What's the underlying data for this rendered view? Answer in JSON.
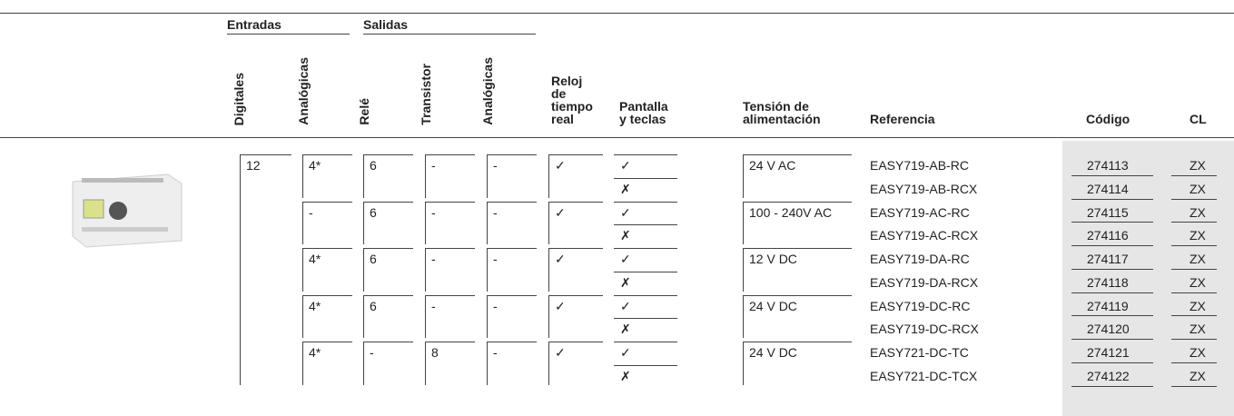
{
  "header": {
    "groups": [
      "Entradas",
      "Salidas"
    ],
    "rotated": [
      "Digitales",
      "Analógicas",
      "Relé",
      "Transistor",
      "Analógicas"
    ],
    "columns": [
      "Reloj\nde\ntiempo\nreal",
      "Pantalla\ny teclas",
      "Tensión de\nalimentación",
      "Referencia",
      "Código",
      "CL"
    ]
  },
  "table": {
    "digitales": "12",
    "groups": [
      {
        "analogicas": "4*",
        "rele": "6",
        "transistor": "-",
        "analogicas_salida": "-",
        "reloj": "✓",
        "tension": "24 V AC",
        "rows": [
          {
            "pantalla": "✓",
            "referencia": "EASY719-AB-RC",
            "codigo": "274113",
            "cl": "ZX"
          },
          {
            "pantalla": "✗",
            "referencia": "EASY719-AB-RCX",
            "codigo": "274114",
            "cl": "ZX"
          }
        ]
      },
      {
        "analogicas": "-",
        "rele": "6",
        "transistor": "-",
        "analogicas_salida": "-",
        "reloj": "✓",
        "tension": "100 - 240V AC",
        "rows": [
          {
            "pantalla": "✓",
            "referencia": "EASY719-AC-RC",
            "codigo": "274115",
            "cl": "ZX"
          },
          {
            "pantalla": "✗",
            "referencia": "EASY719-AC-RCX",
            "codigo": "274116",
            "cl": "ZX"
          }
        ]
      },
      {
        "analogicas": "4*",
        "rele": "6",
        "transistor": "-",
        "analogicas_salida": "-",
        "reloj": "✓",
        "tension": "12 V DC",
        "rows": [
          {
            "pantalla": "✓",
            "referencia": "EASY719-DA-RC",
            "codigo": "274117",
            "cl": "ZX"
          },
          {
            "pantalla": "✗",
            "referencia": "EASY719-DA-RCX",
            "codigo": "274118",
            "cl": "ZX"
          }
        ]
      },
      {
        "analogicas": "4*",
        "rele": "6",
        "transistor": "-",
        "analogicas_salida": "-",
        "reloj": "✓",
        "tension": "24 V DC",
        "rows": [
          {
            "pantalla": "✓",
            "referencia": "EASY719-DC-RC",
            "codigo": "274119",
            "cl": "ZX"
          },
          {
            "pantalla": "✗",
            "referencia": "EASY719-DC-RCX",
            "codigo": "274120",
            "cl": "ZX"
          }
        ]
      },
      {
        "analogicas": "4*",
        "rele": "-",
        "transistor": "8",
        "analogicas_salida": "-",
        "reloj": "✓",
        "tension": "24 V DC",
        "rows": [
          {
            "pantalla": "✓",
            "referencia": "EASY721-DC-TC",
            "codigo": "274121",
            "cl": "ZX"
          },
          {
            "pantalla": "✗",
            "referencia": "EASY721-DC-TCX",
            "codigo": "274122",
            "cl": "ZX"
          }
        ]
      }
    ]
  }
}
